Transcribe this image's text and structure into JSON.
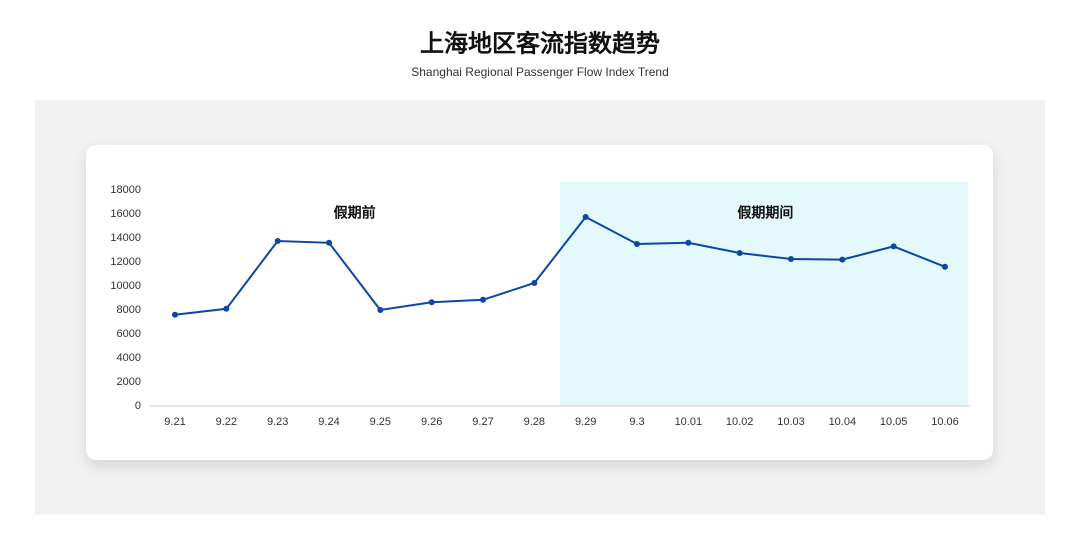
{
  "chart_data": {
    "type": "line",
    "title": "上海地区客流指数趋势",
    "subtitle": "Shanghai Regional Passenger Flow Index Trend",
    "categories": [
      "9.21",
      "9.22",
      "9.23",
      "9.24",
      "9.25",
      "9.26",
      "9.27",
      "9.28",
      "9.29",
      "9.3",
      "10.01",
      "10.02",
      "10.03",
      "10.04",
      "10.05",
      "10.06"
    ],
    "series": [
      {
        "name": "客流指数",
        "color": "#0d47a1",
        "values": [
          7600,
          8100,
          13750,
          13600,
          8000,
          8650,
          8850,
          10250,
          15750,
          13500,
          13600,
          12750,
          12250,
          12200,
          13300,
          11600
        ]
      }
    ],
    "ylim": [
      0,
      18000
    ],
    "yticks": [
      0,
      2000,
      4000,
      6000,
      8000,
      10000,
      12000,
      14000,
      16000,
      18000
    ],
    "annotations": [
      "假期前",
      "假期期间"
    ],
    "shaded_from": 8,
    "shade_color": "#e3f9fb",
    "grid": false
  }
}
